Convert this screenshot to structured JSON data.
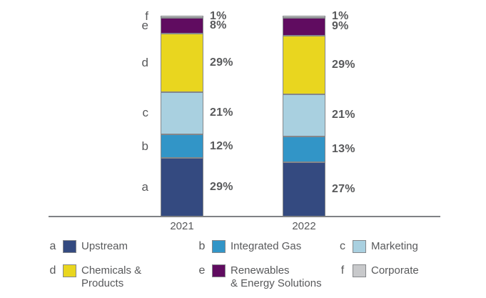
{
  "chart_data": {
    "type": "bar",
    "stacked": true,
    "title": "",
    "unit": "%",
    "categories": [
      "2021",
      "2022"
    ],
    "segments_order_bottom_to_top": [
      "a",
      "b",
      "c",
      "d",
      "e",
      "f"
    ],
    "series": [
      {
        "key": "a",
        "name": "Upstream",
        "color": "#344a80",
        "values": [
          29,
          27
        ]
      },
      {
        "key": "b",
        "name": "Integrated Gas",
        "color": "#3295c7",
        "values": [
          12,
          13
        ]
      },
      {
        "key": "c",
        "name": "Marketing",
        "color": "#a9d0e0",
        "values": [
          21,
          21
        ]
      },
      {
        "key": "d",
        "name": "Chemicals & Products",
        "color": "#e9d61f",
        "values": [
          29,
          29
        ]
      },
      {
        "key": "e",
        "name": "Renewables & Energy Solutions",
        "color": "#600c60",
        "values": [
          8,
          9
        ]
      },
      {
        "key": "f",
        "name": "Corporate",
        "color": "#c8c9cb",
        "values": [
          1,
          1
        ]
      }
    ],
    "ylim": [
      0,
      100
    ],
    "grid": false,
    "legend_position": "bottom"
  },
  "legend": {
    "items": [
      {
        "key": "a",
        "lines": [
          "Upstream"
        ]
      },
      {
        "key": "b",
        "lines": [
          "Integrated Gas"
        ]
      },
      {
        "key": "c",
        "lines": [
          "Marketing"
        ]
      },
      {
        "key": "d",
        "lines": [
          "Chemicals &",
          "Products"
        ]
      },
      {
        "key": "e",
        "lines": [
          "Renewables",
          "& Energy Solutions"
        ]
      },
      {
        "key": "f",
        "lines": [
          "Corporate"
        ]
      }
    ]
  },
  "colors": {
    "text": "#58595b",
    "axis": "#808285",
    "segment_border": "#85878a"
  }
}
